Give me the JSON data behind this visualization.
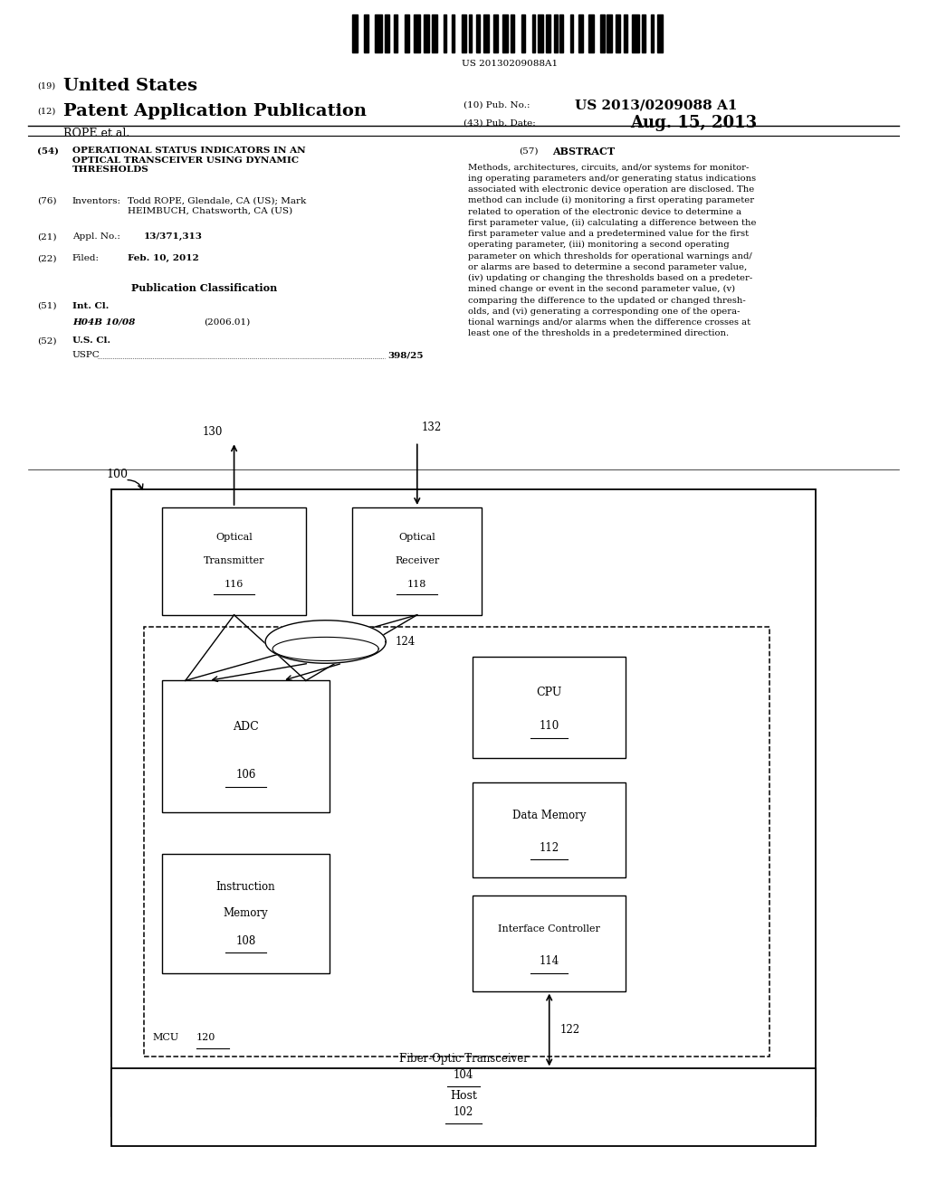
{
  "barcode_text": "US 20130209088A1",
  "header_19": "(19)",
  "header_19_text": "United States",
  "header_12": "(12)",
  "header_12_text": "Patent Application Publication",
  "header_10": "(10) Pub. No.:",
  "header_10_val": "US 2013/0209088 A1",
  "header_43": "(43) Pub. Date:",
  "header_43_val": "Aug. 15, 2013",
  "author": "ROPE et al.",
  "field_54": "(54)",
  "title_54": "OPERATIONAL STATUS INDICATORS IN AN\nOPTICAL TRANSCEIVER USING DYNAMIC\nTHRESHOLDS",
  "field_76": "(76)",
  "inventors_label": "Inventors:",
  "inventors_text": "Todd ROPE, Glendale, CA (US); Mark\nHEIMBUCH, Chatsworth, CA (US)",
  "field_21": "(21)",
  "appl_label": "Appl. No.:",
  "appl_val": "13/371,313",
  "field_22": "(22)",
  "filed_label": "Filed:",
  "filed_val": "Feb. 10, 2012",
  "pub_class_title": "Publication Classification",
  "field_51": "(51)",
  "intcl_label": "Int. Cl.",
  "intcl_code": "H04B 10/08",
  "intcl_year": "(2006.01)",
  "field_52": "(52)",
  "uscl_label": "U.S. Cl.",
  "uspc_label": "USPC",
  "uspc_val": "398/25",
  "field_57": "(57)",
  "abstract_title": "ABSTRACT",
  "abstract_text": "Methods, architectures, circuits, and/or systems for monitor-\ning operating parameters and/or generating status indications\nassociated with electronic device operation are disclosed. The\nmethod can include (i) monitoring a first operating parameter\nrelated to operation of the electronic device to determine a\nfirst parameter value, (ii) calculating a difference between the\nfirst parameter value and a predetermined value for the first\noperating parameter, (iii) monitoring a second operating\nparameter on which thresholds for operational warnings and/\nor alarms are based to determine a second parameter value,\n(iv) updating or changing the thresholds based on a predeter-\nmined change or event in the second parameter value, (v)\ncomparing the difference to the updated or changed thresh-\nolds, and (vi) generating a corresponding one of the opera-\ntional warnings and/or alarms when the difference crosses at\nleast one of the thresholds in a predetermined direction.",
  "bg_color": "#ffffff",
  "text_color": "#000000"
}
